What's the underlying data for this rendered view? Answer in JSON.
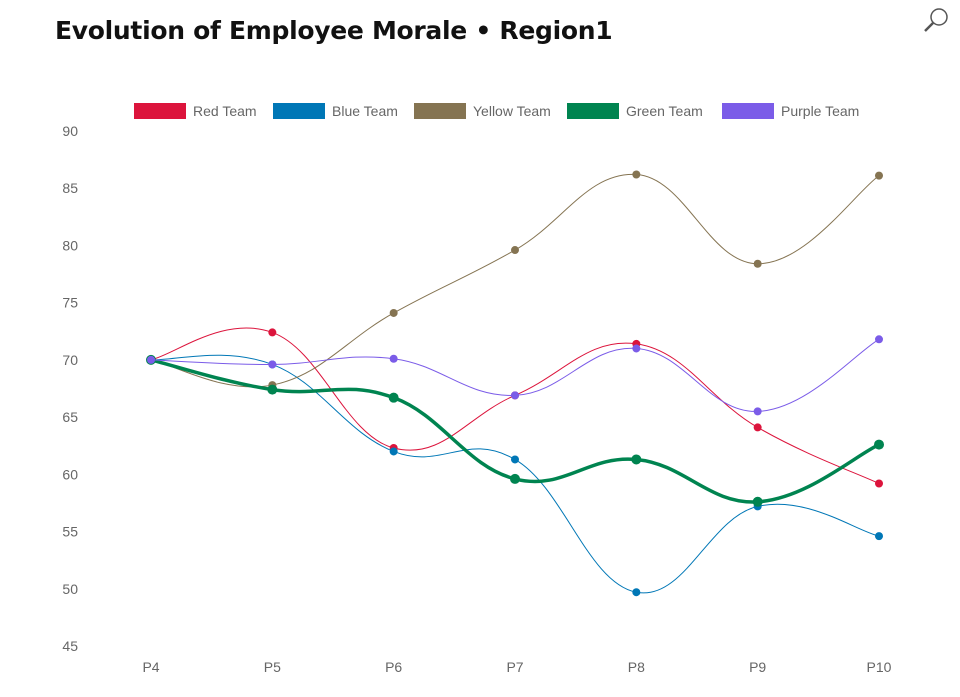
{
  "title": "Evolution of Employee Morale • Region1",
  "zoom_icon": "magnifier-icon",
  "chart_data": {
    "type": "line",
    "title": "Evolution of Employee Morale • Region1",
    "xlabel": "",
    "ylabel": "",
    "categories": [
      "P4",
      "P5",
      "P6",
      "P7",
      "P8",
      "P9",
      "P10"
    ],
    "ylim": [
      45,
      90
    ],
    "yticks": [
      45,
      50,
      55,
      60,
      65,
      70,
      75,
      80,
      85,
      90
    ],
    "legend_position": "top",
    "grid": false,
    "series": [
      {
        "name": "Red Team",
        "color": "#dc143c",
        "width": 1,
        "values": [
          70,
          72.4,
          62.3,
          66.9,
          71.4,
          64.1,
          59.2
        ]
      },
      {
        "name": "Blue Team",
        "color": "#0077b6",
        "width": 1,
        "values": [
          70,
          69.6,
          62.0,
          61.3,
          49.7,
          57.2,
          54.6
        ]
      },
      {
        "name": "Yellow Team",
        "color": "#857452",
        "width": 1,
        "values": [
          70,
          67.8,
          74.1,
          79.6,
          86.2,
          78.4,
          86.1
        ]
      },
      {
        "name": "Green Team",
        "color": "#008450",
        "width": 3.5,
        "values": [
          70,
          67.4,
          66.7,
          59.6,
          61.3,
          57.6,
          62.6
        ]
      },
      {
        "name": "Purple Team",
        "color": "#7b5ce8",
        "width": 1,
        "values": [
          70,
          69.6,
          70.1,
          66.9,
          71.0,
          65.5,
          71.8
        ]
      }
    ]
  }
}
